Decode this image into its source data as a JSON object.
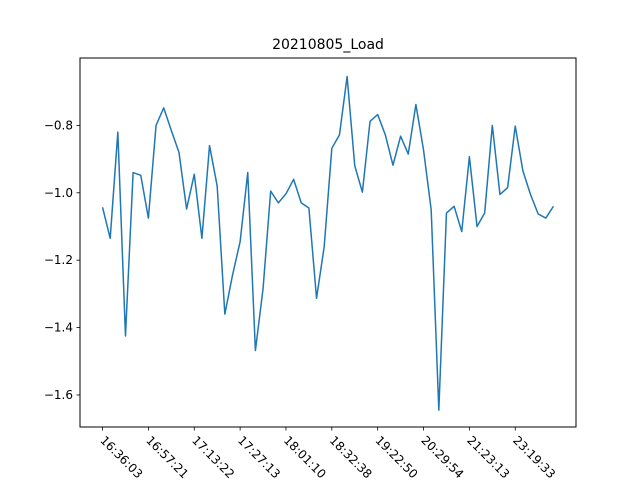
{
  "chart_data": {
    "type": "line",
    "title": "20210805_Load",
    "xlabel": "",
    "ylabel": "",
    "x_tick_labels": [
      "16:36:03",
      "16:57:21",
      "17:13:22",
      "17:27:13",
      "18:01:10",
      "18:32:38",
      "19:22:50",
      "20:29:54",
      "21:23:13",
      "23:19:33"
    ],
    "y_ticks": [
      -1.6,
      -1.4,
      -1.2,
      -1.0,
      -0.8
    ],
    "y_tick_labels": [
      "−1.6",
      "−1.4",
      "−1.2",
      "−1.0",
      "−0.8"
    ],
    "ylim": [
      -1.695,
      -0.6
    ],
    "xlim": [
      -2.95,
      61.95
    ],
    "grid": false,
    "series": [
      {
        "color": "#1f77b4",
        "values": [
          -1.043,
          -1.135,
          -0.82,
          -1.425,
          -0.94,
          -0.948,
          -1.075,
          -0.8,
          -0.748,
          -0.815,
          -0.88,
          -1.048,
          -0.945,
          -1.135,
          -0.86,
          -0.98,
          -1.36,
          -1.245,
          -1.145,
          -0.94,
          -1.468,
          -1.285,
          -0.995,
          -1.03,
          -1.003,
          -0.96,
          -1.03,
          -1.045,
          -1.313,
          -1.16,
          -0.868,
          -0.828,
          -0.655,
          -0.92,
          -0.998,
          -0.788,
          -0.768,
          -0.828,
          -0.918,
          -0.832,
          -0.885,
          -0.738,
          -0.873,
          -1.05,
          -1.645,
          -1.06,
          -1.04,
          -1.115,
          -0.893,
          -1.1,
          -1.06,
          -0.8,
          -1.005,
          -0.985,
          -0.802,
          -0.935,
          -1.005,
          -1.063,
          -1.075,
          -1.04
        ]
      }
    ]
  }
}
